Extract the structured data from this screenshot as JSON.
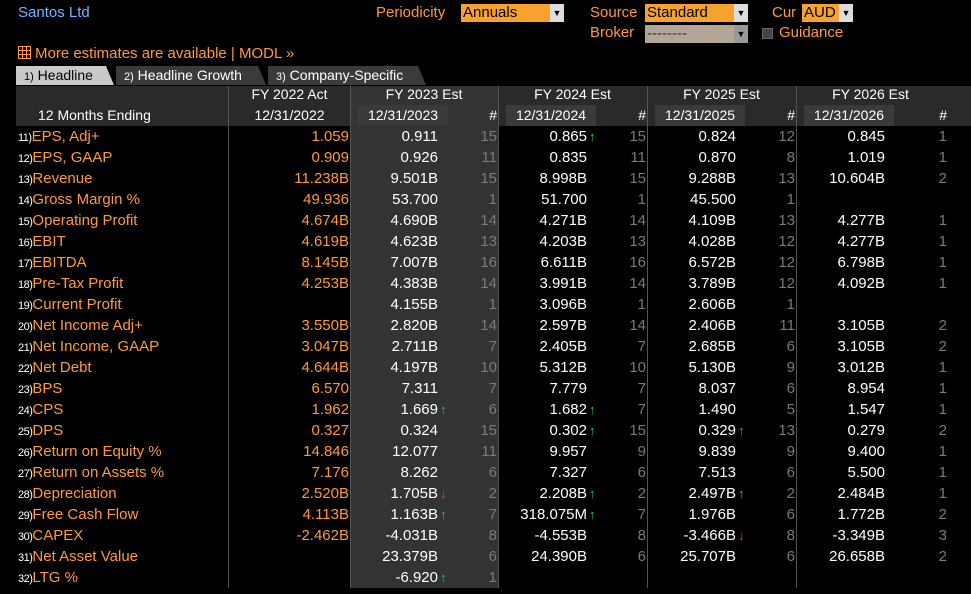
{
  "title": "Santos Ltd",
  "controls": {
    "periodicity_label": "Periodicity",
    "periodicity_value": "Annuals",
    "source_label": "Source",
    "source_value": "Standard",
    "cur_label": "Cur",
    "cur_value": "AUD",
    "broker_label": "Broker",
    "broker_value": "--------",
    "guidance_label": "Guidance"
  },
  "more_estimates": "More estimates are available | MODL »",
  "tabs": [
    {
      "num": "1)",
      "label": "Headline"
    },
    {
      "num": "2)",
      "label": "Headline Growth"
    },
    {
      "num": "3)",
      "label": "Company-Specific"
    }
  ],
  "header": {
    "row_label": "12 Months Ending",
    "periods": [
      {
        "title": "FY 2022 Act",
        "date": "12/31/2022"
      },
      {
        "title": "FY 2023 Est",
        "date": "12/31/2023",
        "count_label": "#"
      },
      {
        "title": "FY 2024 Est",
        "date": "12/31/2024",
        "count_label": "#"
      },
      {
        "title": "FY 2025 Est",
        "date": "12/31/2025",
        "count_label": "#"
      },
      {
        "title": "FY 2026 Est",
        "date": "12/31/2026",
        "count_label": "#"
      }
    ]
  },
  "rows": [
    {
      "num": "11)",
      "label": "EPS, Adj+",
      "act": "1.059",
      "e": [
        [
          "0.911",
          "",
          "15"
        ],
        [
          "0.865",
          "up",
          "15"
        ],
        [
          "0.824",
          "",
          "12"
        ],
        [
          "0.845",
          "",
          "1"
        ]
      ]
    },
    {
      "num": "12)",
      "label": "EPS, GAAP",
      "act": "0.909",
      "e": [
        [
          "0.926",
          "",
          "11"
        ],
        [
          "0.835",
          "",
          "11"
        ],
        [
          "0.870",
          "",
          "8"
        ],
        [
          "1.019",
          "",
          "1"
        ]
      ]
    },
    {
      "num": "13)",
      "label": "Revenue",
      "act": "11.238B",
      "e": [
        [
          "9.501B",
          "",
          "15"
        ],
        [
          "8.998B",
          "",
          "15"
        ],
        [
          "9.288B",
          "",
          "13"
        ],
        [
          "10.604B",
          "",
          "2"
        ]
      ]
    },
    {
      "num": "14)",
      "label": "Gross Margin %",
      "act": "49.936",
      "e": [
        [
          "53.700",
          "",
          "1"
        ],
        [
          "51.700",
          "",
          "1"
        ],
        [
          "45.500",
          "",
          "1"
        ],
        [
          "",
          "",
          ""
        ]
      ]
    },
    {
      "num": "15)",
      "label": "Operating Profit",
      "act": "4.674B",
      "e": [
        [
          "4.690B",
          "",
          "14"
        ],
        [
          "4.271B",
          "",
          "14"
        ],
        [
          "4.109B",
          "",
          "13"
        ],
        [
          "4.277B",
          "",
          "1"
        ]
      ]
    },
    {
      "num": "16)",
      "label": "EBIT",
      "act": "4.619B",
      "e": [
        [
          "4.623B",
          "",
          "13"
        ],
        [
          "4.203B",
          "",
          "13"
        ],
        [
          "4.028B",
          "",
          "12"
        ],
        [
          "4.277B",
          "",
          "1"
        ]
      ]
    },
    {
      "num": "17)",
      "label": "EBITDA",
      "act": "8.145B",
      "e": [
        [
          "7.007B",
          "",
          "16"
        ],
        [
          "6.611B",
          "",
          "16"
        ],
        [
          "6.572B",
          "",
          "12"
        ],
        [
          "6.798B",
          "",
          "1"
        ]
      ]
    },
    {
      "num": "18)",
      "label": "Pre-Tax Profit",
      "act": "4.253B",
      "e": [
        [
          "4.383B",
          "",
          "14"
        ],
        [
          "3.991B",
          "",
          "14"
        ],
        [
          "3.789B",
          "",
          "12"
        ],
        [
          "4.092B",
          "",
          "1"
        ]
      ]
    },
    {
      "num": "19)",
      "label": "Current Profit",
      "act": "",
      "e": [
        [
          "4.155B",
          "",
          "1"
        ],
        [
          "3.096B",
          "",
          "1"
        ],
        [
          "2.606B",
          "",
          "1"
        ],
        [
          "",
          "",
          ""
        ]
      ]
    },
    {
      "num": "20)",
      "label": "Net Income Adj+",
      "act": "3.550B",
      "e": [
        [
          "2.820B",
          "",
          "14"
        ],
        [
          "2.597B",
          "",
          "14"
        ],
        [
          "2.406B",
          "",
          "11"
        ],
        [
          "3.105B",
          "",
          "2"
        ]
      ]
    },
    {
      "num": "21)",
      "label": "Net Income, GAAP",
      "act": "3.047B",
      "e": [
        [
          "2.711B",
          "",
          "7"
        ],
        [
          "2.405B",
          "",
          "7"
        ],
        [
          "2.685B",
          "",
          "6"
        ],
        [
          "3.105B",
          "",
          "2"
        ]
      ]
    },
    {
      "num": "22)",
      "label": "Net Debt",
      "act": "4.644B",
      "e": [
        [
          "4.197B",
          "",
          "10"
        ],
        [
          "5.312B",
          "",
          "10"
        ],
        [
          "5.130B",
          "",
          "9"
        ],
        [
          "3.012B",
          "",
          "1"
        ]
      ]
    },
    {
      "num": "23)",
      "label": "BPS",
      "act": "6.570",
      "e": [
        [
          "7.311",
          "",
          "7"
        ],
        [
          "7.779",
          "",
          "7"
        ],
        [
          "8.037",
          "",
          "6"
        ],
        [
          "8.954",
          "",
          "1"
        ]
      ]
    },
    {
      "num": "24)",
      "label": "CPS",
      "act": "1.962",
      "e": [
        [
          "1.669",
          "up",
          "6"
        ],
        [
          "1.682",
          "up",
          "7"
        ],
        [
          "1.490",
          "",
          "5"
        ],
        [
          "1.547",
          "",
          "1"
        ]
      ]
    },
    {
      "num": "25)",
      "label": "DPS",
      "act": "0.327",
      "e": [
        [
          "0.324",
          "",
          "15"
        ],
        [
          "0.302",
          "up",
          "15"
        ],
        [
          "0.329",
          "up",
          "13"
        ],
        [
          "0.279",
          "",
          "2"
        ]
      ]
    },
    {
      "num": "26)",
      "label": "Return on Equity %",
      "act": "14.846",
      "e": [
        [
          "12.077",
          "",
          "11"
        ],
        [
          "9.957",
          "",
          "9"
        ],
        [
          "9.839",
          "",
          "9"
        ],
        [
          "9.400",
          "",
          "1"
        ]
      ]
    },
    {
      "num": "27)",
      "label": "Return on Assets %",
      "act": "7.176",
      "e": [
        [
          "8.262",
          "",
          "6"
        ],
        [
          "7.327",
          "",
          "6"
        ],
        [
          "7.513",
          "",
          "6"
        ],
        [
          "5.500",
          "",
          "1"
        ]
      ]
    },
    {
      "num": "28)",
      "label": "Depreciation",
      "act": "2.520B",
      "e": [
        [
          "1.705B",
          "down",
          "2"
        ],
        [
          "2.208B",
          "up",
          "2"
        ],
        [
          "2.497B",
          "up",
          "2"
        ],
        [
          "2.484B",
          "",
          "1"
        ]
      ]
    },
    {
      "num": "29)",
      "label": "Free Cash Flow",
      "act": "4.113B",
      "e": [
        [
          "1.163B",
          "up",
          "7"
        ],
        [
          "318.075M",
          "up",
          "7"
        ],
        [
          "1.976B",
          "",
          "6"
        ],
        [
          "1.772B",
          "",
          "2"
        ]
      ]
    },
    {
      "num": "30)",
      "label": "CAPEX",
      "act": "-2.462B",
      "e": [
        [
          "-4.031B",
          "",
          "8"
        ],
        [
          "-4.553B",
          "",
          "8"
        ],
        [
          "-3.466B",
          "down",
          "8"
        ],
        [
          "-3.349B",
          "",
          "3"
        ]
      ]
    },
    {
      "num": "31)",
      "label": "Net Asset Value",
      "act": "",
      "e": [
        [
          "23.379B",
          "",
          "6"
        ],
        [
          "24.390B",
          "",
          "6"
        ],
        [
          "25.707B",
          "",
          "6"
        ],
        [
          "26.658B",
          "",
          "2"
        ]
      ]
    },
    {
      "num": "32)",
      "label": "LTG %",
      "act": "",
      "e": [
        [
          "-6.920",
          "up",
          "1"
        ],
        [
          "",
          "",
          ""
        ],
        [
          "",
          "",
          ""
        ],
        [
          "",
          "",
          ""
        ]
      ]
    }
  ]
}
